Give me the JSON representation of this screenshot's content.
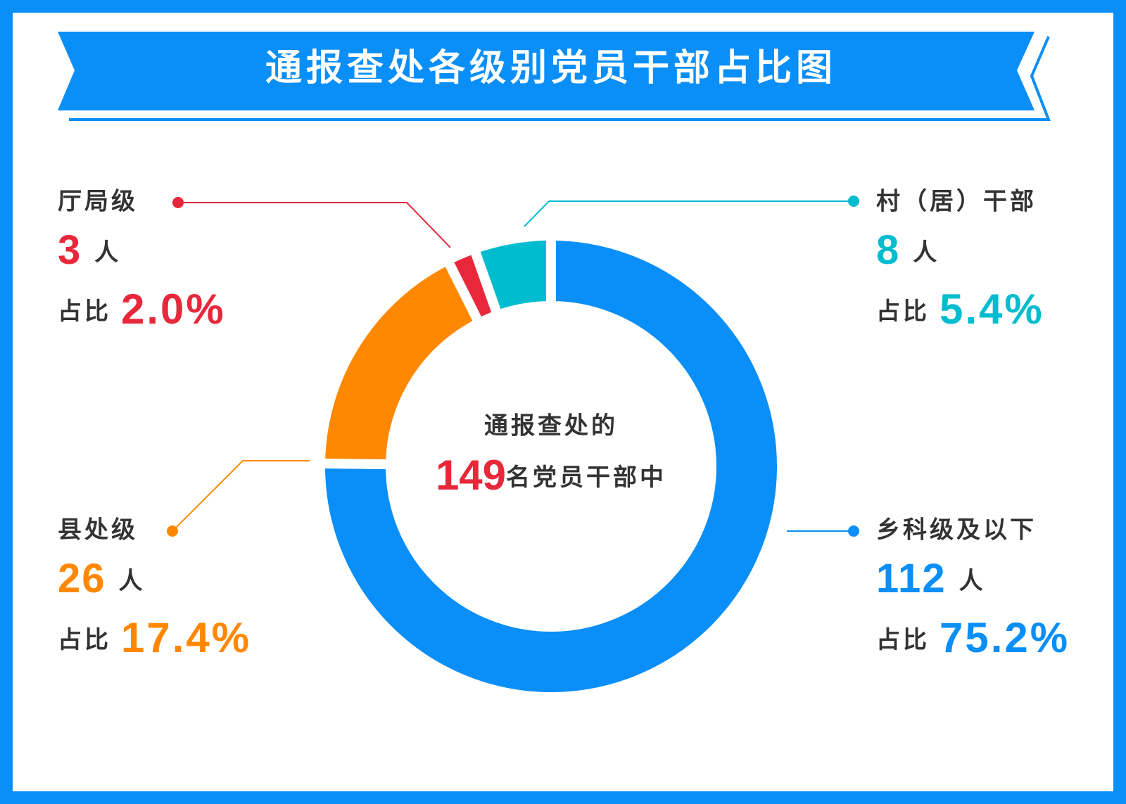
{
  "chart_data": {
    "type": "donut",
    "title": "通报查处各级别党员干部占比图",
    "center_line1": "通报查处的",
    "total": "149",
    "center_line2": "名党员干部中",
    "unit": "人",
    "share_prefix": "占比",
    "categories": [
      "乡科级及以下",
      "县处级",
      "厅局级",
      "村（居）干部"
    ],
    "counts": [
      "112",
      "26",
      "3",
      "8"
    ],
    "values": [
      75.2,
      17.4,
      2.0,
      5.4
    ],
    "value_labels": [
      "75.2%",
      "17.4%",
      "2.0%",
      "5.4%"
    ],
    "colors": [
      "#0a8ef7",
      "#ff8800",
      "#e8283a",
      "#00bccf"
    ]
  }
}
